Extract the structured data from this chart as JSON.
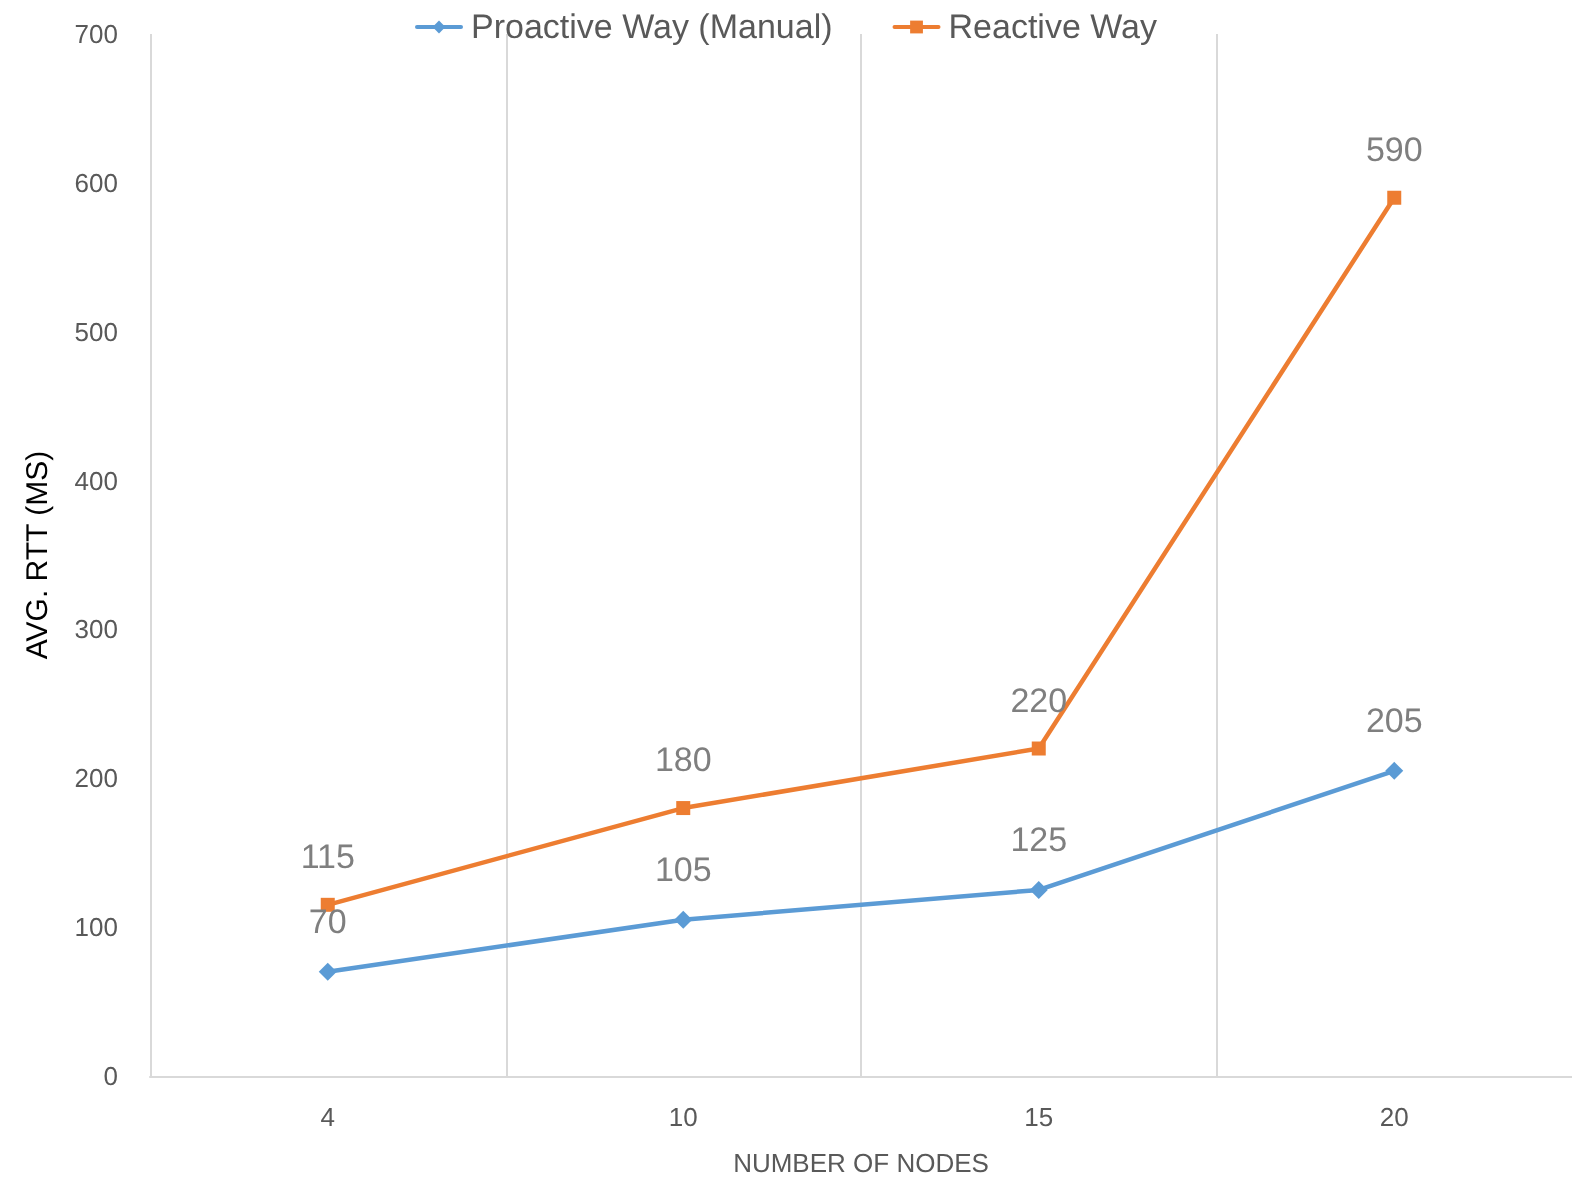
{
  "chart_data": {
    "type": "line",
    "xlabel": "NUMBER OF NODES",
    "ylabel": "AVG. RTT (MS)",
    "categories": [
      "4",
      "10",
      "15",
      "20"
    ],
    "series": [
      {
        "name": "Proactive Way (Manual)",
        "color": "#5b9bd5",
        "marker": "diamond",
        "values": [
          70,
          105,
          125,
          205
        ]
      },
      {
        "name": "Reactive Way",
        "color": "#ed7d31",
        "marker": "square",
        "values": [
          115,
          180,
          220,
          590
        ]
      }
    ],
    "ylim": [
      0,
      700
    ],
    "yticks": [
      0,
      100,
      200,
      300,
      400,
      500,
      600,
      700
    ],
    "grid": "x",
    "legend": "top",
    "data_labels": true
  }
}
